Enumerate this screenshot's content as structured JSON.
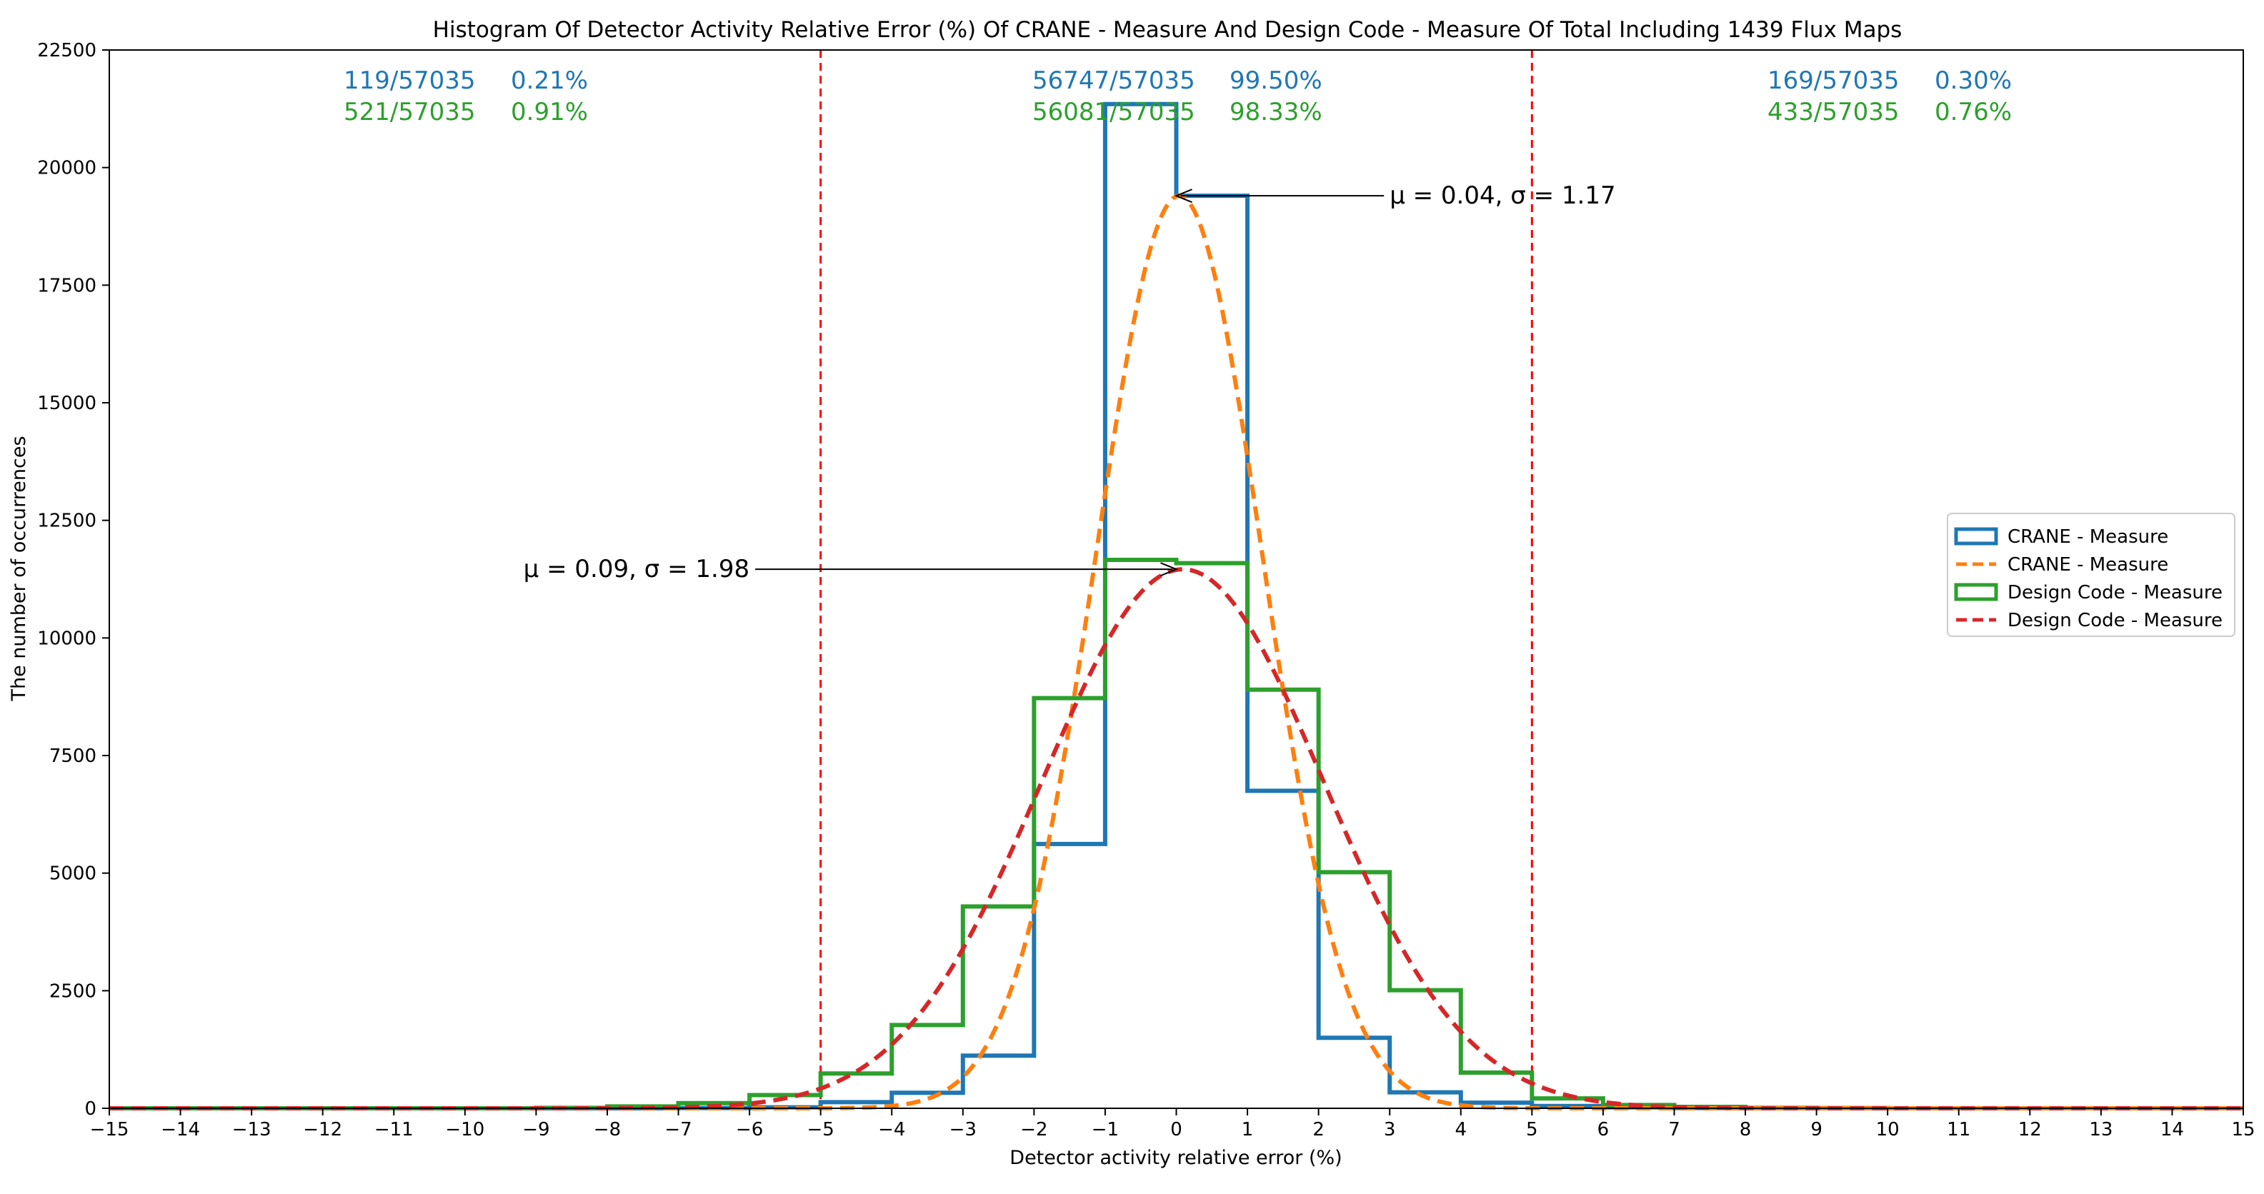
{
  "chart_data": {
    "type": "histogram",
    "title": "Histogram Of Detector Activity Relative Error (%) Of CRANE - Measure And Design Code - Measure Of Total Including 1439 Flux Maps",
    "xlabel": "Detector activity relative error (%)",
    "ylabel": "The number of occurrences",
    "xlim": [
      -15,
      15
    ],
    "ylim": [
      0,
      22500
    ],
    "x_ticks": [
      -15,
      -14,
      -13,
      -12,
      -11,
      -10,
      -9,
      -8,
      -7,
      -6,
      -5,
      -4,
      -3,
      -2,
      -1,
      0,
      1,
      2,
      3,
      4,
      5,
      6,
      7,
      8,
      9,
      10,
      11,
      12,
      13,
      14,
      15
    ],
    "y_ticks": [
      0,
      2500,
      5000,
      7500,
      10000,
      12500,
      15000,
      17500,
      20000,
      22500
    ],
    "bin_edges": [
      -15,
      -14,
      -13,
      -12,
      -11,
      -10,
      -9,
      -8,
      -7,
      -6,
      -5,
      -4,
      -3,
      -2,
      -1,
      0,
      1,
      2,
      3,
      4,
      5,
      6,
      7,
      8,
      9,
      10,
      11,
      12,
      13,
      14,
      15
    ],
    "series": [
      {
        "name": "CRANE - Measure",
        "kind": "step",
        "color": "#1f77b4",
        "counts": [
          0,
          0,
          0,
          0,
          0,
          0,
          0,
          0,
          5,
          20,
          130,
          330,
          1120,
          5620,
          21350,
          19400,
          6750,
          1500,
          340,
          120,
          50,
          20,
          5,
          0,
          0,
          0,
          0,
          0,
          0,
          0
        ]
      },
      {
        "name": "Design Code - Measure",
        "kind": "step",
        "color": "#2ca02c",
        "counts": [
          0,
          0,
          0,
          0,
          0,
          0,
          10,
          40,
          110,
          280,
          740,
          1770,
          4290,
          8720,
          11660,
          11590,
          8900,
          5020,
          2510,
          760,
          210,
          70,
          30,
          10,
          5,
          0,
          0,
          0,
          0,
          0
        ]
      },
      {
        "name": "CRANE - Measure",
        "kind": "normal_fit",
        "color": "#ff7f0e",
        "mu": 0.04,
        "sigma": 1.17,
        "peak": 19400
      },
      {
        "name": "Design Code - Measure",
        "kind": "normal_fit",
        "color": "#d62728",
        "mu": 0.09,
        "sigma": 1.98,
        "peak": 11460
      }
    ],
    "threshold_lines": [
      -5,
      5
    ],
    "threshold_color": "#ff0000",
    "region_stats": {
      "left": [
        {
          "count": "119/57035",
          "pct": "0.21%",
          "color": "#1f77b4"
        },
        {
          "count": "521/57035",
          "pct": "0.91%",
          "color": "#2ca02c"
        }
      ],
      "center": [
        {
          "count": "56747/57035",
          "pct": "99.50%",
          "color": "#1f77b4"
        },
        {
          "count": "56081/57035",
          "pct": "98.33%",
          "color": "#2ca02c"
        }
      ],
      "right": [
        {
          "count": "169/57035",
          "pct": "0.30%",
          "color": "#1f77b4"
        },
        {
          "count": "433/57035",
          "pct": "0.76%",
          "color": "#2ca02c"
        }
      ]
    },
    "annotations": [
      {
        "text": "μ = 0.04, σ = 1.17",
        "x": 0,
        "y": 19400,
        "text_x": 3,
        "text_y": 19400
      },
      {
        "text": "μ = 0.09, σ = 1.98",
        "x": 0,
        "y": 11460,
        "text_x": -6,
        "text_y": 11460
      }
    ],
    "legend": {
      "position": "center-right",
      "entries": [
        {
          "label": "CRANE - Measure",
          "style": "box",
          "color": "#1f77b4"
        },
        {
          "label": "CRANE - Measure",
          "style": "dash",
          "color": "#ff7f0e"
        },
        {
          "label": "Design Code - Measure",
          "style": "box",
          "color": "#2ca02c"
        },
        {
          "label": "Design Code - Measure",
          "style": "dash",
          "color": "#d62728"
        }
      ]
    },
    "grid": false
  }
}
